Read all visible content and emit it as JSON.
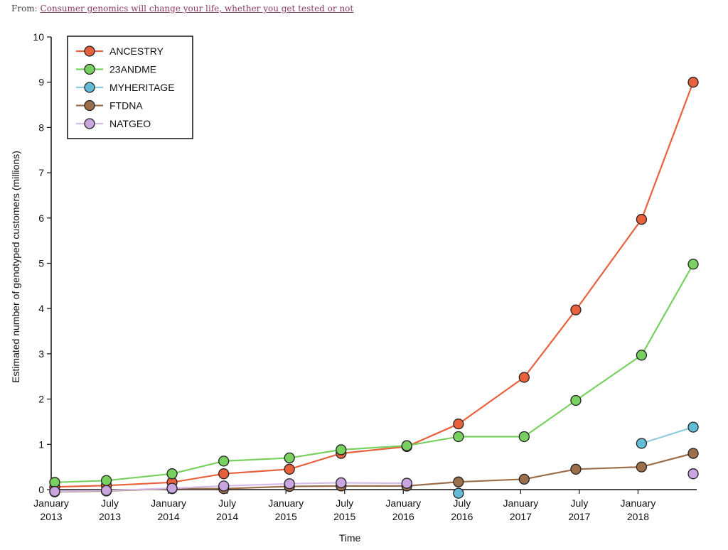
{
  "source": {
    "prefix": "From: ",
    "link_text": "Consumer genomics will change your life, whether you get tested or not"
  },
  "chart_data": {
    "type": "line",
    "title": "",
    "xlabel": "Time",
    "ylabel": "Estimated number of genotyped customers (millions)",
    "ylim": [
      0,
      10
    ],
    "yticks": [
      0,
      1,
      2,
      3,
      4,
      5,
      6,
      7,
      8,
      9,
      10
    ],
    "xlim": [
      0,
      5.5
    ],
    "xticks": [
      {
        "line1": "January",
        "line2": "2013",
        "x": 0
      },
      {
        "line1": "July",
        "line2": "2013",
        "x": 0.5
      },
      {
        "line1": "January",
        "line2": "2014",
        "x": 1
      },
      {
        "line1": "July",
        "line2": "2014",
        "x": 1.5
      },
      {
        "line1": "January",
        "line2": "2015",
        "x": 2
      },
      {
        "line1": "July",
        "line2": "2015",
        "x": 2.5
      },
      {
        "line1": "January",
        "line2": "2016",
        "x": 3
      },
      {
        "line1": "July",
        "line2": "2016",
        "x": 3.5
      },
      {
        "line1": "January",
        "line2": "2017",
        "x": 4
      },
      {
        "line1": "July",
        "line2": "2017",
        "x": 4.5
      },
      {
        "line1": "January",
        "line2": "2018",
        "x": 5
      }
    ],
    "grid": false,
    "legend_position": "top-left",
    "series": [
      {
        "name": "ANCESTRY",
        "color": "#e8613c",
        "line_color": "#e8613c",
        "points": [
          [
            0.03,
            0.06
          ],
          [
            0.47,
            0.09
          ],
          [
            1.03,
            0.16
          ],
          [
            1.47,
            0.35
          ],
          [
            2.03,
            0.45
          ],
          [
            2.47,
            0.8
          ],
          [
            3.03,
            0.95
          ],
          [
            3.47,
            1.45
          ],
          [
            4.03,
            2.48
          ],
          [
            4.47,
            3.97
          ],
          [
            5.03,
            5.97
          ],
          [
            5.47,
            9.0
          ]
        ]
      },
      {
        "name": "23ANDME",
        "color": "#78d060",
        "line_color": "#78d060",
        "points": [
          [
            0.03,
            0.16
          ],
          [
            0.47,
            0.2
          ],
          [
            1.03,
            0.35
          ],
          [
            1.47,
            0.63
          ],
          [
            2.03,
            0.7
          ],
          [
            2.47,
            0.88
          ],
          [
            3.03,
            0.97
          ],
          [
            3.47,
            1.17
          ],
          [
            4.03,
            1.17
          ],
          [
            4.47,
            1.97
          ],
          [
            5.03,
            2.97
          ],
          [
            5.47,
            4.98
          ]
        ]
      },
      {
        "name": "MYHERITAGE",
        "color": "#62bcd6",
        "line_color": "#8fcce0",
        "points": [
          [
            3.47,
            -0.08
          ],
          null,
          [
            5.03,
            1.02
          ],
          [
            5.47,
            1.38
          ]
        ]
      },
      {
        "name": "FTDNA",
        "color": "#9c6f4c",
        "line_color": "#9c6f4c",
        "points": [
          [
            0.03,
            -0.05
          ],
          [
            0.47,
            -0.03
          ],
          [
            1.03,
            0.02
          ],
          [
            1.47,
            0.02
          ],
          [
            2.03,
            0.07
          ],
          [
            2.47,
            0.08
          ],
          [
            3.03,
            0.08
          ],
          [
            3.47,
            0.17
          ],
          [
            4.03,
            0.23
          ],
          [
            4.47,
            0.45
          ],
          [
            5.03,
            0.5
          ],
          [
            5.47,
            0.8
          ]
        ]
      },
      {
        "name": "NATGEO",
        "color": "#c9a6e0",
        "line_color": "#d6bce8",
        "points": [
          [
            0.03,
            -0.04
          ],
          [
            0.47,
            -0.02
          ],
          [
            1.03,
            0.03
          ],
          [
            1.47,
            0.08
          ],
          [
            2.03,
            0.13
          ],
          [
            2.47,
            0.15
          ],
          [
            3.03,
            0.14
          ],
          null,
          [
            5.47,
            0.35
          ]
        ]
      }
    ]
  }
}
